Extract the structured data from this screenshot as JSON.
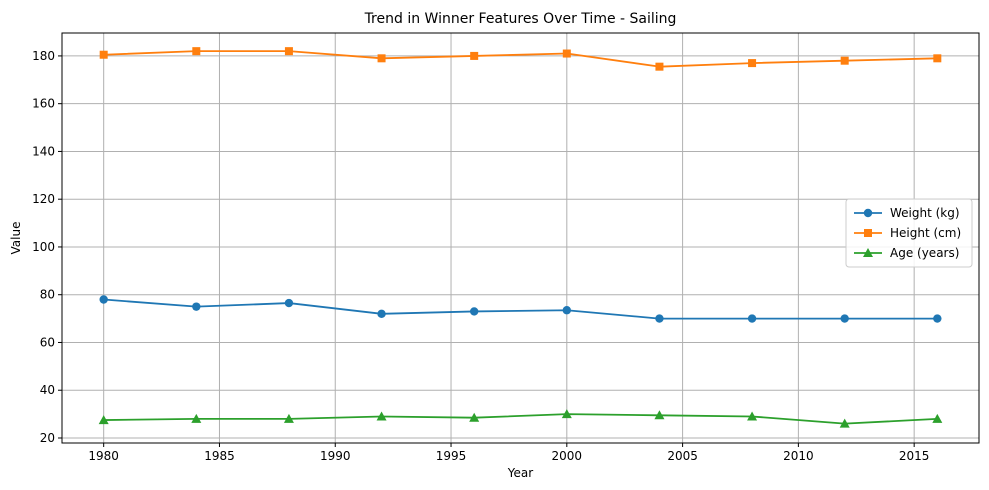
{
  "chart_data": {
    "type": "line",
    "title": "Trend in Winner Features Over Time - Sailing",
    "xlabel": "Year",
    "ylabel": "Value",
    "x": [
      1980,
      1984,
      1988,
      1992,
      1996,
      2000,
      2004,
      2008,
      2012,
      2016
    ],
    "xlim": [
      1978.2,
      2017.8
    ],
    "ylim": [
      17.9,
      189.6
    ],
    "xticks": [
      1980,
      1985,
      1990,
      1995,
      2000,
      2005,
      2010,
      2015
    ],
    "yticks": [
      20,
      40,
      60,
      80,
      100,
      120,
      140,
      160,
      180
    ],
    "grid": true,
    "legend_position": "center-right",
    "series": [
      {
        "name": "Weight (kg)",
        "color": "#1f77b4",
        "marker": "circle",
        "values": [
          78,
          75,
          76.5,
          72,
          73,
          73.5,
          70,
          70,
          70,
          70
        ]
      },
      {
        "name": "Height (cm)",
        "color": "#ff7f0e",
        "marker": "square",
        "values": [
          180.5,
          182,
          182,
          179,
          180,
          181,
          175.5,
          177,
          178,
          179
        ]
      },
      {
        "name": "Age (years)",
        "color": "#2ca02c",
        "marker": "triangle",
        "values": [
          27.5,
          28,
          28,
          29,
          28.5,
          30,
          29.5,
          29,
          26,
          28
        ]
      }
    ]
  }
}
